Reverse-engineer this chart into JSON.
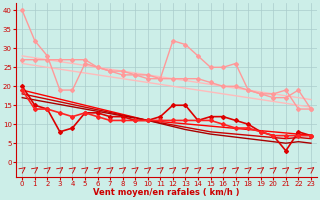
{
  "x": [
    0,
    1,
    2,
    3,
    4,
    5,
    6,
    7,
    8,
    9,
    10,
    11,
    12,
    13,
    14,
    15,
    16,
    17,
    18,
    19,
    20,
    21,
    22,
    23
  ],
  "series": [
    {
      "name": "light_pink_jagged",
      "y": [
        40,
        32,
        28,
        19,
        19,
        26,
        25,
        24,
        23,
        23,
        22,
        22,
        32,
        31,
        28,
        25,
        25,
        26,
        19,
        18,
        18,
        19,
        14,
        14
      ],
      "color": "#ff9999",
      "lw": 1.0,
      "marker": "D",
      "ms": 2.0,
      "zorder": 3
    },
    {
      "name": "light_pink_diagonal1",
      "y": [
        28,
        27.5,
        27,
        26.5,
        26,
        25.5,
        25,
        24.5,
        24,
        23.5,
        23,
        22.5,
        22,
        21.5,
        21,
        20.5,
        20,
        19.5,
        19,
        18.5,
        18,
        17.5,
        17,
        16.5
      ],
      "color": "#ffbbbb",
      "lw": 1.0,
      "marker": null,
      "ms": 0,
      "zorder": 2
    },
    {
      "name": "light_pink_diagonal2",
      "y": [
        26,
        25.5,
        25,
        24.5,
        24,
        23.5,
        23,
        22.5,
        22,
        21.5,
        21,
        20.5,
        20,
        19.5,
        19,
        18.5,
        18,
        17.5,
        17,
        16.5,
        16,
        15.5,
        15,
        14.5
      ],
      "color": "#ffbbbb",
      "lw": 1.0,
      "marker": null,
      "ms": 0,
      "zorder": 2
    },
    {
      "name": "medium_pink_jagged",
      "y": [
        27,
        27,
        27,
        27,
        27,
        27,
        25,
        24,
        24,
        23,
        23,
        22,
        22,
        22,
        22,
        21,
        20,
        20,
        19,
        18,
        17,
        17,
        19,
        14
      ],
      "color": "#ff9999",
      "lw": 1.0,
      "marker": "D",
      "ms": 2.0,
      "zorder": 3
    },
    {
      "name": "red_jagged1",
      "y": [
        20,
        15,
        14,
        8,
        9,
        13,
        13,
        12,
        12,
        11,
        11,
        12,
        15,
        15,
        11,
        12,
        12,
        11,
        10,
        8,
        7,
        3,
        8,
        7
      ],
      "color": "#dd0000",
      "lw": 1.2,
      "marker": "D",
      "ms": 2.0,
      "zorder": 4
    },
    {
      "name": "red_diagonal1",
      "y": [
        19,
        18.2,
        17.4,
        16.6,
        15.8,
        15.0,
        14.2,
        13.4,
        12.6,
        11.8,
        11.0,
        10.7,
        10.4,
        10.1,
        9.8,
        9.5,
        9.2,
        8.9,
        8.6,
        8.3,
        8.0,
        7.7,
        7.4,
        7.1
      ],
      "color": "#ff0000",
      "lw": 1.0,
      "marker": null,
      "ms": 0,
      "zorder": 2
    },
    {
      "name": "red_diagonal2",
      "y": [
        18,
        17.3,
        16.6,
        15.9,
        15.2,
        14.5,
        13.8,
        13.1,
        12.4,
        11.7,
        11.0,
        10.4,
        9.8,
        9.2,
        8.6,
        8.0,
        7.7,
        7.4,
        7.1,
        6.8,
        6.5,
        6.2,
        6.5,
        6.2
      ],
      "color": "#cc0000",
      "lw": 1.0,
      "marker": null,
      "ms": 0,
      "zorder": 2
    },
    {
      "name": "red_diagonal3",
      "y": [
        17,
        16.4,
        15.8,
        15.2,
        14.6,
        14.0,
        13.4,
        12.8,
        12.2,
        11.6,
        11.0,
        10.2,
        9.4,
        8.6,
        8.0,
        7.4,
        7.0,
        6.6,
        6.2,
        5.8,
        5.4,
        5.0,
        5.4,
        5.0
      ],
      "color": "#aa0000",
      "lw": 1.0,
      "marker": null,
      "ms": 0,
      "zorder": 2
    },
    {
      "name": "red_jagged2",
      "y": [
        19,
        14,
        14,
        13,
        12,
        13,
        12,
        11,
        11,
        11,
        11,
        11,
        11,
        11,
        11,
        11,
        10,
        9,
        9,
        8,
        7,
        7,
        7,
        7
      ],
      "color": "#ff2222",
      "lw": 1.2,
      "marker": "D",
      "ms": 2.0,
      "zorder": 4
    }
  ],
  "bg_color": "#cceee8",
  "grid_color": "#aacccc",
  "axis_color": "#cc0000",
  "xlabel": "Vent moyen/en rafales ( km/h )",
  "xlim": [
    -0.5,
    23.5
  ],
  "ylim": [
    -4,
    42
  ],
  "yticks": [
    0,
    5,
    10,
    15,
    20,
    25,
    30,
    35,
    40
  ],
  "xticks": [
    0,
    1,
    2,
    3,
    4,
    5,
    6,
    7,
    8,
    9,
    10,
    11,
    12,
    13,
    14,
    15,
    16,
    17,
    18,
    19,
    20,
    21,
    22,
    23
  ]
}
